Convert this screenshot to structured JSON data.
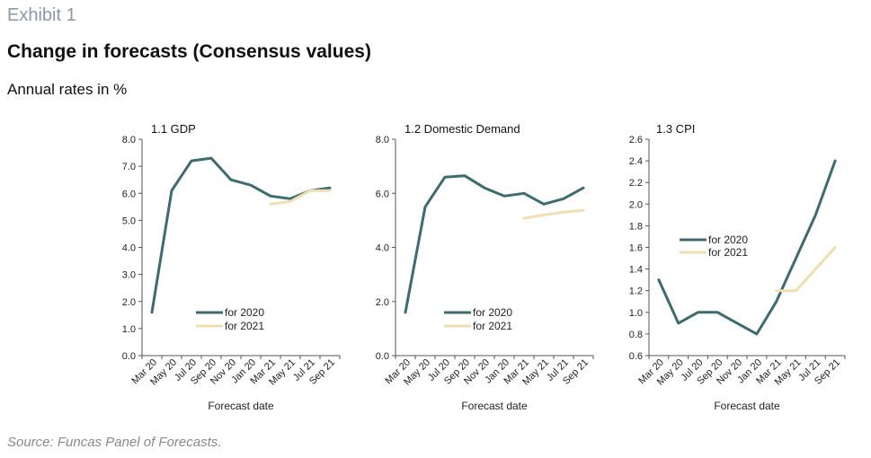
{
  "exhibit": "Exhibit 1",
  "title": "Change in forecasts (Consensus values)",
  "subtitle": "Annual rates in %",
  "source": "Source: Funcas Panel of Forecasts.",
  "colors": {
    "series_2020": "#3d6b70",
    "series_2021": "#efdfb0",
    "axis": "#555555"
  },
  "chart_data": [
    {
      "type": "line",
      "title": "1.1 GDP",
      "xlabel": "Forecast date",
      "categories": [
        "Mar 20",
        "May 20",
        "Jul 20",
        "Sep 20",
        "Nov 20",
        "Jan 20",
        "Mar 21",
        "May 21",
        "Jul 21",
        "Sep 21"
      ],
      "ylim": [
        0,
        8
      ],
      "yticks": [
        "0.0",
        "1.0",
        "2.0",
        "3.0",
        "4.0",
        "5.0",
        "6.0",
        "7.0",
        "8.0"
      ],
      "legend": "lower-center",
      "series": [
        {
          "name": "for 2020",
          "values": [
            1.6,
            6.1,
            7.2,
            7.3,
            6.5,
            6.3,
            5.9,
            5.8,
            6.1,
            6.2
          ]
        },
        {
          "name": "for 2021",
          "values": [
            null,
            null,
            null,
            null,
            null,
            null,
            5.6,
            5.7,
            6.1,
            6.1
          ]
        }
      ]
    },
    {
      "type": "line",
      "title": "1.2 Domestic  Demand",
      "xlabel": "Forecast date",
      "categories": [
        "Mar 20",
        "May 20",
        "Jul 20",
        "Sep 20",
        "Nov 20",
        "Jan 20",
        "Mar 21",
        "May 21",
        "Jul 21",
        "Sep 21"
      ],
      "ylim": [
        0,
        8
      ],
      "yticks": [
        "0.0",
        "2.0",
        "4.0",
        "6.0",
        "8.0"
      ],
      "legend": "lower-center",
      "series": [
        {
          "name": "for 2020",
          "values": [
            1.6,
            5.5,
            6.6,
            6.65,
            6.2,
            5.9,
            6.0,
            5.6,
            5.8,
            6.2
          ]
        },
        {
          "name": "for 2021",
          "values": [
            null,
            null,
            null,
            null,
            null,
            null,
            5.08,
            5.2,
            5.3,
            5.37
          ]
        }
      ]
    },
    {
      "type": "line",
      "title": "1.3 CPI",
      "xlabel": "Forecast date",
      "categories": [
        "Mar 20",
        "May 20",
        "Jul 20",
        "Sep 20",
        "Nov 20",
        "Jan 20",
        "Mar 21",
        "May 21",
        "Jul 21",
        "Sep 21"
      ],
      "ylim": [
        0.6,
        2.6
      ],
      "yticks": [
        "0.6",
        "0.8",
        "1.0",
        "1.2",
        "1.4",
        "1.6",
        "1.8",
        "2.0",
        "2.2",
        "2.4",
        "2.6"
      ],
      "legend": "middle-left",
      "series": [
        {
          "name": "for 2020",
          "values": [
            1.3,
            0.9,
            1.0,
            1.0,
            0.9,
            0.8,
            1.1,
            1.5,
            1.9,
            2.4
          ]
        },
        {
          "name": "for 2021",
          "values": [
            null,
            null,
            null,
            null,
            null,
            null,
            1.2,
            1.2,
            1.4,
            1.6
          ]
        }
      ]
    }
  ]
}
